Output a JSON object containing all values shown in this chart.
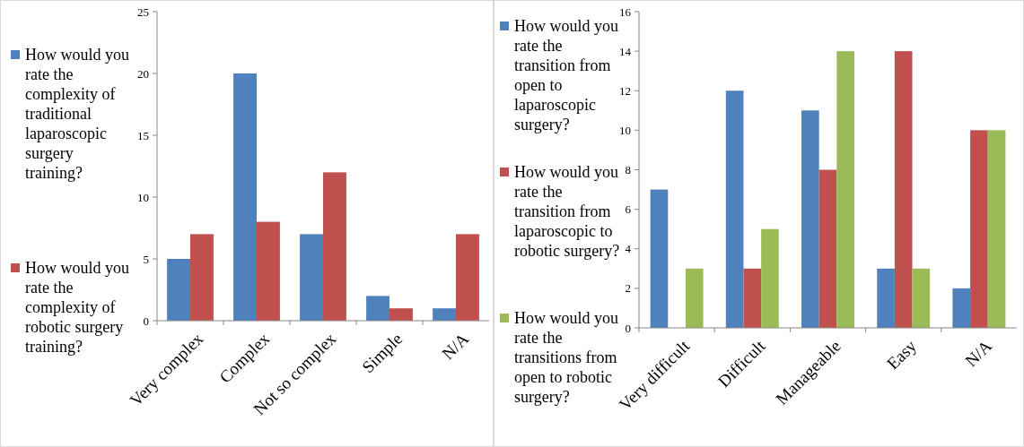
{
  "chart_data": [
    {
      "type": "bar",
      "categories": [
        "Very complex",
        "Complex",
        "Not so complex",
        "Simple",
        "N/A"
      ],
      "series": [
        {
          "name": "How would you rate the complexity of traditional laparoscopic surgery training?",
          "color": "#4f81bd",
          "values": [
            5,
            20,
            7,
            2,
            1
          ]
        },
        {
          "name": "How would you rate the complexity of robotic surgery training?",
          "color": "#c0504d",
          "values": [
            7,
            8,
            12,
            1,
            7
          ]
        }
      ],
      "ylim": [
        0,
        25
      ],
      "yticks": [
        0,
        5,
        10,
        15,
        20,
        25
      ],
      "legend": "left",
      "grid": false
    },
    {
      "type": "bar",
      "categories": [
        "Very difficult",
        "Difficult",
        "Manageable",
        "Easy",
        "N/A"
      ],
      "series": [
        {
          "name": "How would you rate the transition from open to laparoscopic surgery?",
          "color": "#4f81bd",
          "values": [
            7,
            12,
            11,
            3,
            2
          ]
        },
        {
          "name": "How would you rate the transition from laparoscopic to robotic surgery?",
          "color": "#c0504d",
          "values": [
            0,
            3,
            8,
            14,
            10
          ]
        },
        {
          "name": "How would you rate the transitions from open to robotic surgery?",
          "color": "#9bbb59",
          "values": [
            3,
            5,
            14,
            3,
            10
          ]
        }
      ],
      "ylim": [
        0,
        16
      ],
      "yticks": [
        0,
        2,
        4,
        6,
        8,
        10,
        12,
        14,
        16
      ],
      "legend": "left",
      "grid": false
    }
  ]
}
